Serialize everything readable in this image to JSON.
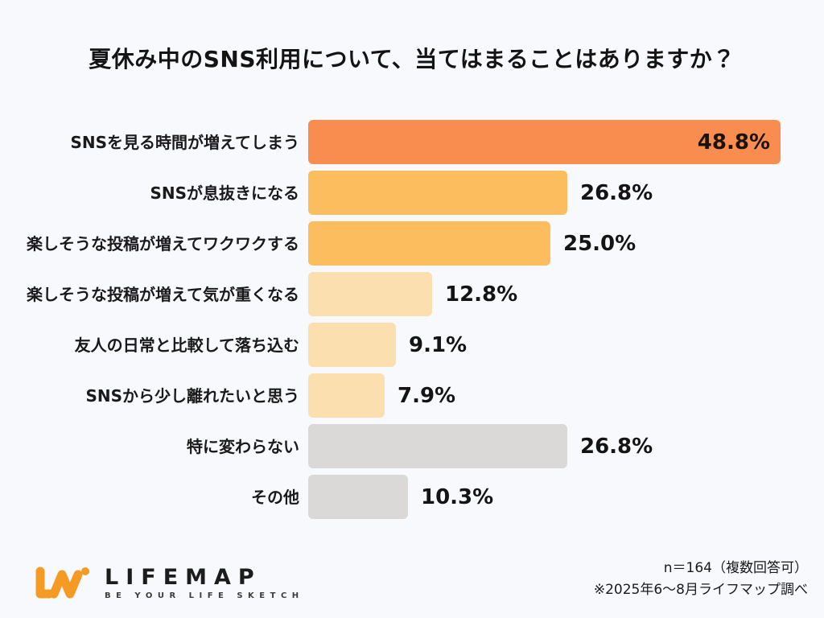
{
  "title": "夏休み中のSNS利用について、当てはまることはありますか？",
  "chart_data": {
    "type": "bar",
    "orientation": "horizontal",
    "title": "夏休み中のSNS利用について、当てはまることはありますか？",
    "categories": [
      "SNSを見る時間が増えてしまう",
      "SNSが息抜きになる",
      "楽しそうな投稿が増えてワクワクする",
      "楽しそうな投稿が増えて気が重くなる",
      "友人の日常と比較して落ち込む",
      "SNSから少し離れたいと思う",
      "特に変わらない",
      "その他"
    ],
    "values": [
      48.8,
      26.8,
      25.0,
      12.8,
      9.1,
      7.9,
      26.8,
      10.3
    ],
    "value_labels": [
      "48.8%",
      "26.8%",
      "25.0%",
      "12.8%",
      "9.1%",
      "7.9%",
      "26.8%",
      "10.3%"
    ],
    "bar_colors": [
      "#f98d4f",
      "#fbbd5d",
      "#fbbd5d",
      "#fcdfae",
      "#fcdfae",
      "#fcdfae",
      "#dad9d7",
      "#dad9d7"
    ],
    "value_label_inside": [
      true,
      false,
      false,
      false,
      false,
      false,
      false,
      false
    ],
    "xlim": [
      0,
      48.8
    ],
    "grid": false,
    "legend": false,
    "unit": "%"
  },
  "colors": {
    "background": "#f8f9fc",
    "accent_dark_orange": "#f98d4f",
    "accent_orange": "#fbbd5d",
    "accent_pale_orange": "#fcdfae",
    "neutral_gray": "#dad9d7",
    "text": "#1a1a1a",
    "logo_orange": "#f59a23"
  },
  "footer": {
    "logo_word": "LIFEMAP",
    "logo_tagline": "BE YOUR LIFE SKETCH",
    "note_line1": "n＝164（複数回答可）",
    "note_line2": "※2025年6〜8月ライフマップ調べ"
  }
}
